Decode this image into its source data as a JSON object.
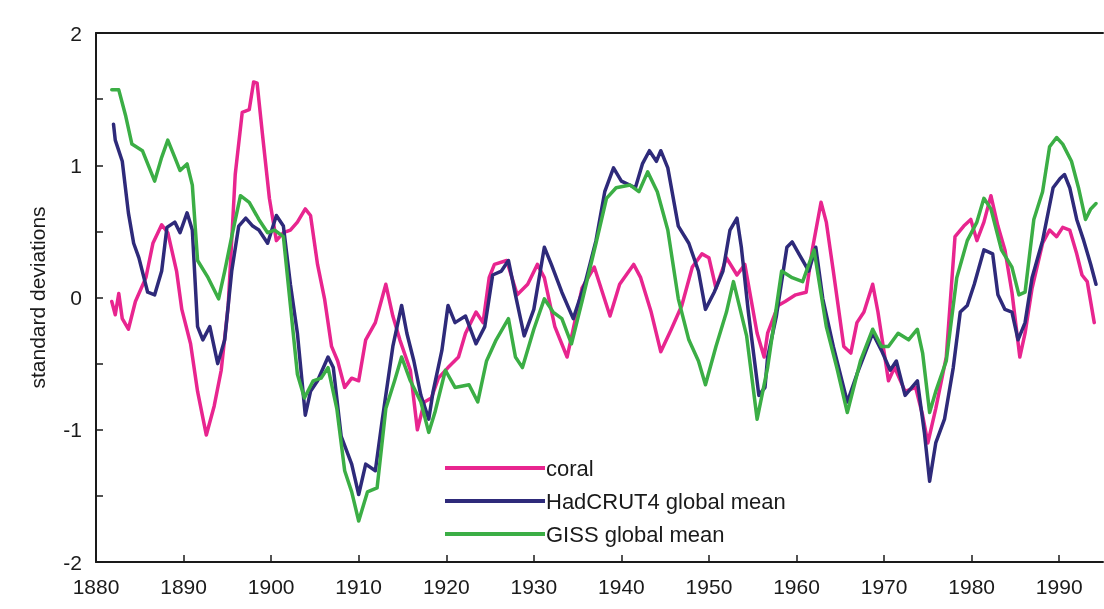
{
  "chart_data": {
    "type": "line",
    "ylabel": "standard deviations",
    "xlim": [
      1880,
      1995
    ],
    "xticks": [
      1880,
      1890,
      1900,
      1910,
      1920,
      1930,
      1940,
      1950,
      1960,
      1970,
      1980,
      1990
    ],
    "ylim": [
      -2,
      2
    ],
    "yticks": [
      -2,
      {
        "value": -1.5,
        "label": null
      },
      -1,
      {
        "value": -0.5,
        "label": null
      },
      0,
      {
        "value": 0.5,
        "label": null
      },
      1,
      {
        "value": 1.5,
        "label": null
      },
      2
    ],
    "grid": false,
    "legend": "bottom",
    "marker": "none",
    "line_style": "solid",
    "series": [
      {
        "name": "coral",
        "color": "#e8258f",
        "x": [
          1881.8,
          1882.2,
          1882.6,
          1883.0,
          1883.7,
          1884.5,
          1885.7,
          1886.5,
          1887.5,
          1888.2,
          1889.2,
          1889.8,
          1890.8,
          1891.6,
          1892.6,
          1893.5,
          1894.3,
          1895.1,
          1895.9,
          1896.7,
          1897.5,
          1898.0,
          1898.4,
          1899.0,
          1899.8,
          1900.6,
          1901.4,
          1902.2,
          1903.0,
          1903.9,
          1904.5,
          1905.3,
          1906.1,
          1906.9,
          1907.6,
          1908.4,
          1909.2,
          1910.0,
          1910.8,
          1911.9,
          1913.1,
          1913.9,
          1914.7,
          1915.9,
          1916.7,
          1917.5,
          1918.3,
          1919.1,
          1920.2,
          1921.4,
          1922.2,
          1923.4,
          1924.2,
          1924.9,
          1925.5,
          1926.9,
          1928.1,
          1929.3,
          1930.4,
          1931.2,
          1932.4,
          1933.8,
          1934.4,
          1935.5,
          1936.9,
          1938.7,
          1939.8,
          1941.4,
          1942.2,
          1943.4,
          1944.5,
          1945.7,
          1946.9,
          1948.1,
          1949.2,
          1950.0,
          1950.8,
          1952.0,
          1953.2,
          1954.1,
          1955.5,
          1956.3,
          1956.7,
          1957.9,
          1958.7,
          1959.9,
          1961.1,
          1961.8,
          1962.8,
          1963.4,
          1964.2,
          1965.4,
          1966.2,
          1966.9,
          1967.7,
          1968.7,
          1969.3,
          1970.5,
          1971.2,
          1972.4,
          1973.6,
          1974.4,
          1975.0,
          1975.9,
          1977.1,
          1978.1,
          1979.1,
          1979.9,
          1980.6,
          1981.4,
          1982.2,
          1983.0,
          1983.8,
          1984.6,
          1985.5,
          1986.1,
          1986.9,
          1988.1,
          1988.9,
          1989.7,
          1990.4,
          1991.2,
          1992.0,
          1992.6,
          1993.2,
          1994.0
        ],
        "values": [
          -0.03,
          -0.13,
          0.03,
          -0.16,
          -0.24,
          -0.03,
          0.15,
          0.41,
          0.55,
          0.49,
          0.2,
          -0.09,
          -0.35,
          -0.71,
          -1.04,
          -0.82,
          -0.55,
          -0.06,
          0.93,
          1.4,
          1.42,
          1.63,
          1.62,
          1.24,
          0.75,
          0.43,
          0.49,
          0.51,
          0.57,
          0.67,
          0.62,
          0.25,
          -0.01,
          -0.37,
          -0.48,
          -0.68,
          -0.61,
          -0.63,
          -0.32,
          -0.19,
          0.1,
          -0.14,
          -0.32,
          -0.55,
          -1.0,
          -0.79,
          -0.76,
          -0.61,
          -0.53,
          -0.45,
          -0.27,
          -0.11,
          -0.19,
          0.15,
          0.25,
          0.28,
          0.02,
          0.1,
          0.25,
          0.15,
          -0.22,
          -0.45,
          -0.27,
          0.07,
          0.23,
          -0.14,
          0.1,
          0.25,
          0.15,
          -0.11,
          -0.41,
          -0.24,
          -0.06,
          0.23,
          0.33,
          0.3,
          0.07,
          0.3,
          0.17,
          0.25,
          -0.27,
          -0.45,
          -0.27,
          -0.06,
          -0.03,
          0.02,
          0.04,
          0.36,
          0.72,
          0.57,
          0.2,
          -0.37,
          -0.42,
          -0.19,
          -0.11,
          0.1,
          -0.11,
          -0.63,
          -0.53,
          -0.71,
          -0.68,
          -0.89,
          -1.1,
          -0.84,
          -0.45,
          0.46,
          0.54,
          0.59,
          0.43,
          0.57,
          0.77,
          0.54,
          0.36,
          0.04,
          -0.45,
          -0.27,
          0.07,
          0.41,
          0.51,
          0.46,
          0.53,
          0.51,
          0.33,
          0.17,
          0.12,
          -0.19
        ]
      },
      {
        "name": "HadCRUT4 global mean",
        "color": "#2e2a7a",
        "x": [
          1882.0,
          1882.2,
          1883.0,
          1883.7,
          1884.3,
          1884.9,
          1885.9,
          1886.7,
          1887.5,
          1888.1,
          1889.0,
          1889.6,
          1890.4,
          1891.0,
          1891.6,
          1892.2,
          1893.0,
          1893.9,
          1894.7,
          1895.5,
          1896.3,
          1897.1,
          1897.9,
          1898.6,
          1899.6,
          1900.6,
          1901.4,
          1902.2,
          1903.0,
          1903.9,
          1904.5,
          1905.3,
          1906.5,
          1907.1,
          1908.0,
          1909.2,
          1910.0,
          1910.8,
          1911.9,
          1912.7,
          1913.9,
          1914.9,
          1915.5,
          1916.3,
          1917.1,
          1918.0,
          1918.5,
          1919.5,
          1920.2,
          1921.0,
          1922.2,
          1923.4,
          1924.4,
          1925.3,
          1926.3,
          1927.1,
          1927.9,
          1928.9,
          1930.0,
          1931.2,
          1932.0,
          1933.2,
          1934.5,
          1935.9,
          1937.1,
          1938.1,
          1939.1,
          1940.0,
          1941.6,
          1942.4,
          1943.2,
          1944.0,
          1944.5,
          1945.3,
          1946.5,
          1947.7,
          1948.8,
          1949.6,
          1950.6,
          1951.6,
          1952.4,
          1953.2,
          1953.7,
          1954.5,
          1955.7,
          1956.4,
          1956.7,
          1957.7,
          1958.9,
          1959.5,
          1960.7,
          1961.4,
          1962.2,
          1963.0,
          1964.2,
          1965.8,
          1966.9,
          1968.7,
          1969.7,
          1970.7,
          1971.4,
          1972.4,
          1973.8,
          1974.6,
          1975.2,
          1975.9,
          1976.9,
          1977.9,
          1978.7,
          1979.5,
          1980.3,
          1981.4,
          1982.4,
          1983.0,
          1983.8,
          1984.6,
          1985.3,
          1986.1,
          1986.9,
          1988.1,
          1989.3,
          1990.1,
          1990.6,
          1991.2,
          1992.0,
          1992.8,
          1993.6,
          1994.2
        ],
        "values": [
          1.31,
          1.19,
          1.03,
          0.64,
          0.41,
          0.3,
          0.04,
          0.02,
          0.2,
          0.53,
          0.57,
          0.49,
          0.64,
          0.51,
          -0.22,
          -0.32,
          -0.22,
          -0.5,
          -0.32,
          0.2,
          0.54,
          0.6,
          0.54,
          0.51,
          0.41,
          0.62,
          0.54,
          0.1,
          -0.27,
          -0.89,
          -0.71,
          -0.63,
          -0.45,
          -0.53,
          -1.05,
          -1.26,
          -1.49,
          -1.26,
          -1.31,
          -0.92,
          -0.37,
          -0.06,
          -0.27,
          -0.48,
          -0.74,
          -0.92,
          -0.71,
          -0.4,
          -0.06,
          -0.19,
          -0.14,
          -0.35,
          -0.22,
          0.17,
          0.2,
          0.28,
          0.02,
          -0.29,
          -0.09,
          0.38,
          0.25,
          0.04,
          -0.16,
          0.12,
          0.43,
          0.8,
          0.98,
          0.88,
          0.83,
          1.01,
          1.11,
          1.03,
          1.11,
          0.98,
          0.54,
          0.41,
          0.2,
          -0.09,
          0.04,
          0.2,
          0.51,
          0.6,
          0.38,
          -0.11,
          -0.74,
          -0.68,
          -0.45,
          -0.14,
          0.38,
          0.42,
          0.28,
          0.2,
          0.38,
          -0.01,
          -0.37,
          -0.79,
          -0.58,
          -0.27,
          -0.4,
          -0.55,
          -0.48,
          -0.74,
          -0.63,
          -1.02,
          -1.39,
          -1.1,
          -0.92,
          -0.53,
          -0.11,
          -0.06,
          0.1,
          0.36,
          0.33,
          0.02,
          -0.09,
          -0.11,
          -0.32,
          -0.19,
          0.15,
          0.43,
          0.83,
          0.9,
          0.93,
          0.83,
          0.59,
          0.43,
          0.25,
          0.1
        ]
      },
      {
        "name": "GISS global mean",
        "color": "#3bae45",
        "x": [
          1881.8,
          1882.6,
          1883.4,
          1884.1,
          1885.3,
          1886.7,
          1887.5,
          1888.2,
          1889.0,
          1889.6,
          1890.4,
          1891.0,
          1891.6,
          1892.8,
          1894.0,
          1894.7,
          1895.5,
          1896.5,
          1897.5,
          1898.6,
          1899.6,
          1900.4,
          1901.4,
          1902.2,
          1903.0,
          1903.8,
          1904.8,
          1905.7,
          1906.5,
          1907.5,
          1908.4,
          1909.2,
          1910.0,
          1911.0,
          1912.1,
          1913.1,
          1914.1,
          1914.9,
          1915.9,
          1917.1,
          1918.0,
          1918.7,
          1919.9,
          1921.0,
          1922.6,
          1923.6,
          1924.6,
          1925.7,
          1927.1,
          1927.9,
          1928.7,
          1930.0,
          1931.2,
          1932.2,
          1933.2,
          1934.3,
          1935.5,
          1937.1,
          1938.3,
          1939.4,
          1941.0,
          1942.0,
          1943.0,
          1944.1,
          1945.3,
          1946.5,
          1947.7,
          1948.8,
          1949.6,
          1950.8,
          1952.0,
          1952.8,
          1954.3,
          1955.5,
          1956.7,
          1958.3,
          1959.5,
          1960.7,
          1962.0,
          1963.4,
          1964.6,
          1965.8,
          1967.3,
          1968.7,
          1969.7,
          1970.5,
          1971.6,
          1972.8,
          1973.8,
          1974.4,
          1975.2,
          1975.9,
          1977.1,
          1978.3,
          1979.5,
          1980.6,
          1981.4,
          1982.2,
          1983.4,
          1984.6,
          1985.4,
          1986.1,
          1987.1,
          1988.1,
          1988.9,
          1989.7,
          1990.4,
          1991.4,
          1992.2,
          1993.0,
          1993.6,
          1994.2
        ],
        "values": [
          1.57,
          1.57,
          1.37,
          1.16,
          1.11,
          0.88,
          1.06,
          1.19,
          1.06,
          0.96,
          1.01,
          0.85,
          0.28,
          0.15,
          -0.01,
          0.2,
          0.46,
          0.77,
          0.72,
          0.59,
          0.49,
          0.51,
          0.46,
          -0.06,
          -0.58,
          -0.76,
          -0.63,
          -0.61,
          -0.53,
          -0.84,
          -1.31,
          -1.47,
          -1.69,
          -1.47,
          -1.44,
          -0.84,
          -0.63,
          -0.45,
          -0.63,
          -0.79,
          -1.02,
          -0.87,
          -0.55,
          -0.68,
          -0.66,
          -0.79,
          -0.48,
          -0.32,
          -0.16,
          -0.45,
          -0.53,
          -0.24,
          -0.01,
          -0.11,
          -0.16,
          -0.35,
          -0.03,
          0.41,
          0.75,
          0.83,
          0.85,
          0.8,
          0.95,
          0.8,
          0.51,
          -0.01,
          -0.32,
          -0.48,
          -0.66,
          -0.37,
          -0.11,
          0.12,
          -0.29,
          -0.92,
          -0.53,
          0.2,
          0.15,
          0.12,
          0.36,
          -0.22,
          -0.53,
          -0.87,
          -0.48,
          -0.24,
          -0.37,
          -0.37,
          -0.27,
          -0.32,
          -0.24,
          -0.42,
          -0.87,
          -0.71,
          -0.48,
          0.15,
          0.43,
          0.57,
          0.75,
          0.67,
          0.36,
          0.23,
          0.02,
          0.04,
          0.59,
          0.8,
          1.14,
          1.21,
          1.16,
          1.03,
          0.83,
          0.59,
          0.67,
          0.71
        ]
      }
    ]
  }
}
